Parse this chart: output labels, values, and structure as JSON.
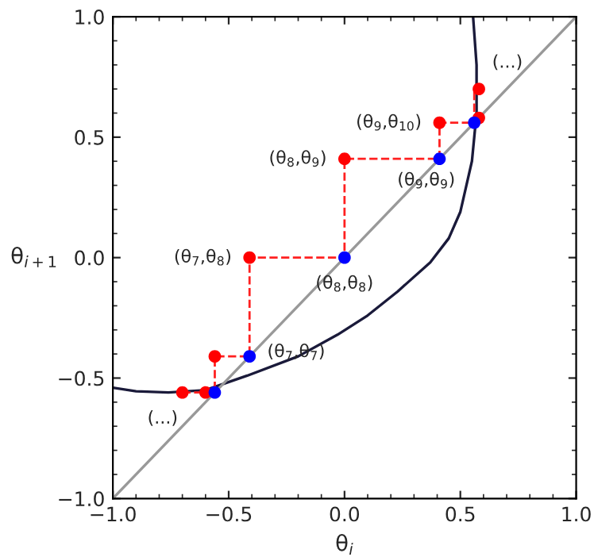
{
  "chart_data": {
    "type": "line",
    "xlabel": "θ$_{i}$",
    "ylabel": "θ$_{i+1}$",
    "xlim": [
      -1,
      1
    ],
    "ylim": [
      -1,
      1
    ],
    "xticks": [
      {
        "value": -1,
        "label": "−1.0"
      },
      {
        "value": -0.5,
        "label": "−0.5"
      },
      {
        "value": 0,
        "label": "0.0"
      },
      {
        "value": 0.5,
        "label": "0.5"
      },
      {
        "value": 1,
        "label": "1.0"
      }
    ],
    "yticks": [
      {
        "value": -1,
        "label": "−1.0"
      },
      {
        "value": -0.5,
        "label": "−0.5"
      },
      {
        "value": 0,
        "label": "0.0"
      },
      {
        "value": 0.5,
        "label": "0.5"
      },
      {
        "value": 1,
        "label": "1.0"
      }
    ],
    "grid": false,
    "legend": false,
    "series": [
      {
        "color": "#1a1a3a",
        "x": [
          -1.0,
          -0.9,
          -0.76,
          -0.6,
          -0.42,
          -0.2,
          -0.03,
          0.1,
          0.23,
          0.37,
          0.45,
          0.5,
          0.55,
          0.57,
          0.57,
          0.555
        ],
        "values": [
          -0.54,
          -0.555,
          -0.56,
          -0.55,
          -0.49,
          -0.41,
          -0.32,
          -0.24,
          -0.14,
          -0.02,
          0.08,
          0.19,
          0.4,
          0.6,
          0.8,
          1.0
        ]
      },
      {
        "color": "#999999",
        "x": [
          -1,
          1
        ],
        "values": [
          -1,
          1
        ]
      },
      {
        "color": "#ff2020",
        "line_style": "dashed",
        "x": [
          -0.7,
          -0.56,
          -0.56,
          -0.41,
          -0.41,
          0,
          0,
          0.41,
          0.41,
          0.56,
          0.56
        ],
        "values": [
          -0.56,
          -0.56,
          -0.41,
          -0.41,
          0,
          0,
          0.41,
          0.41,
          0.56,
          0.56,
          0.7
        ]
      },
      {
        "type": "scatter",
        "color": "#ff0000",
        "marker": "circle",
        "x": [
          -0.7,
          -0.6,
          -0.56,
          -0.41,
          0,
          0.41,
          0.58,
          0.58
        ],
        "values": [
          -0.56,
          -0.56,
          -0.41,
          0,
          0.41,
          0.56,
          0.58,
          0.7
        ]
      },
      {
        "type": "scatter",
        "color": "#0000ff",
        "marker": "circle",
        "x": [
          -0.56,
          -0.41,
          0,
          0.41,
          0.56
        ],
        "values": [
          -0.56,
          -0.41,
          0,
          0.41,
          0.56
        ]
      }
    ],
    "annotations": [
      {
        "text": "(θ$_{7}$,θ$_{8}$)",
        "x": -0.41,
        "y": 0
      },
      {
        "text": "(θ$_{8}$,θ$_{9}$)",
        "x": 0,
        "y": 0.41
      },
      {
        "text": "(θ$_{9}$,θ$_{10}$)",
        "x": 0.41,
        "y": 0.56
      },
      {
        "text": "(θ$_{9}$,θ$_{9}$)",
        "x": 0.41,
        "y": 0.41
      },
      {
        "text": "(θ$_{8}$,θ$_{8}$)",
        "x": 0,
        "y": 0
      },
      {
        "text": "(θ$_{7}$,θ$_{7}$)",
        "x": -0.41,
        "y": -0.41
      },
      {
        "text": "(...)",
        "x": 0.58,
        "y": 0.7
      },
      {
        "text": "(...)",
        "x": -0.7,
        "y": -0.56
      }
    ]
  }
}
